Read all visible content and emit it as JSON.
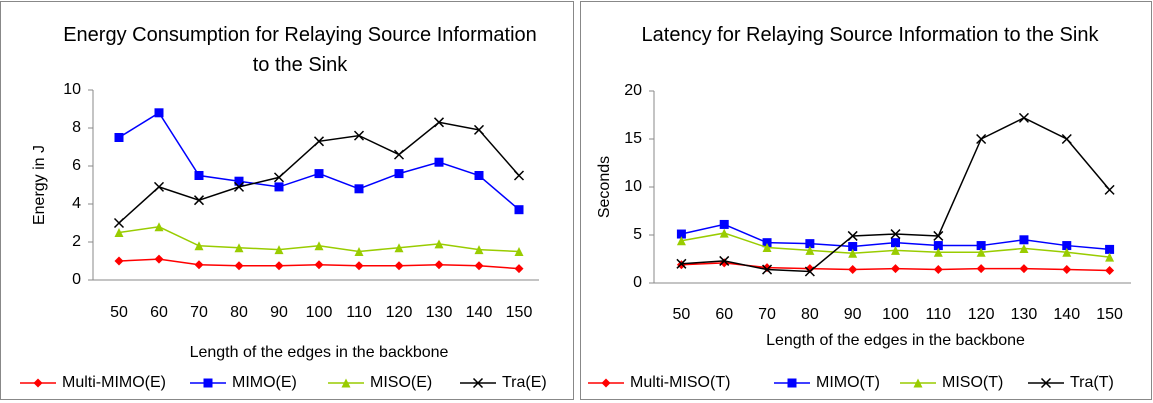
{
  "chart_data": [
    {
      "type": "line",
      "title": "Energy Consumption for Relaying Source Information to the Sink",
      "x_label": "Length of the edges in the backbone",
      "y_label": "Energy  in J",
      "categories": [
        "50",
        "60",
        "70",
        "80",
        "90",
        "100",
        "110",
        "120",
        "130",
        "140",
        "150"
      ],
      "ylim": [
        0,
        10
      ],
      "yticks": [
        0,
        2,
        4,
        6,
        8,
        10
      ],
      "legend": "bottom",
      "series": [
        {
          "name": "Multi-MIMO(E)",
          "color": "#ff0000",
          "marker": "diamond",
          "values": [
            1.0,
            1.1,
            0.8,
            0.75,
            0.75,
            0.8,
            0.75,
            0.75,
            0.8,
            0.75,
            0.6
          ]
        },
        {
          "name": "MIMO(E)",
          "color": "#0000ff",
          "marker": "square",
          "values": [
            7.5,
            8.8,
            5.5,
            5.2,
            4.9,
            5.6,
            4.8,
            5.6,
            6.2,
            5.5,
            3.7
          ]
        },
        {
          "name": "MISO(E)",
          "color": "#99cc00",
          "marker": "triangle",
          "values": [
            2.5,
            2.8,
            1.8,
            1.7,
            1.6,
            1.8,
            1.5,
            1.7,
            1.9,
            1.6,
            1.5
          ]
        },
        {
          "name": "Tra(E)",
          "color": "#000000",
          "marker": "x",
          "values": [
            3.0,
            4.9,
            4.2,
            4.9,
            5.4,
            7.3,
            7.6,
            6.6,
            8.3,
            7.9,
            5.5
          ]
        }
      ]
    },
    {
      "type": "line",
      "title": "Latency for Relaying Source Information to the Sink",
      "x_label": "Length of the edges in the backbone",
      "y_label": "Seconds",
      "categories": [
        "50",
        "60",
        "70",
        "80",
        "90",
        "100",
        "110",
        "120",
        "130",
        "140",
        "150"
      ],
      "ylim": [
        0,
        20
      ],
      "yticks": [
        0,
        5,
        10,
        15,
        20
      ],
      "legend": "bottom",
      "series": [
        {
          "name": "Multi-MISO(T)",
          "color": "#ff0000",
          "marker": "diamond",
          "values": [
            1.9,
            2.1,
            1.6,
            1.5,
            1.4,
            1.5,
            1.4,
            1.5,
            1.5,
            1.4,
            1.3
          ]
        },
        {
          "name": "MIMO(T)",
          "color": "#0000ff",
          "marker": "square",
          "values": [
            5.1,
            6.1,
            4.2,
            4.1,
            3.8,
            4.2,
            3.9,
            3.9,
            4.5,
            3.9,
            3.5
          ]
        },
        {
          "name": "MISO(T)",
          "color": "#99cc00",
          "marker": "triangle",
          "values": [
            4.4,
            5.2,
            3.7,
            3.4,
            3.1,
            3.4,
            3.2,
            3.2,
            3.6,
            3.2,
            2.7
          ]
        },
        {
          "name": "Tra(T)",
          "color": "#000000",
          "marker": "x",
          "values": [
            2.0,
            2.3,
            1.4,
            1.2,
            4.9,
            5.1,
            4.9,
            15.0,
            17.2,
            15.0,
            9.7
          ]
        }
      ]
    }
  ]
}
